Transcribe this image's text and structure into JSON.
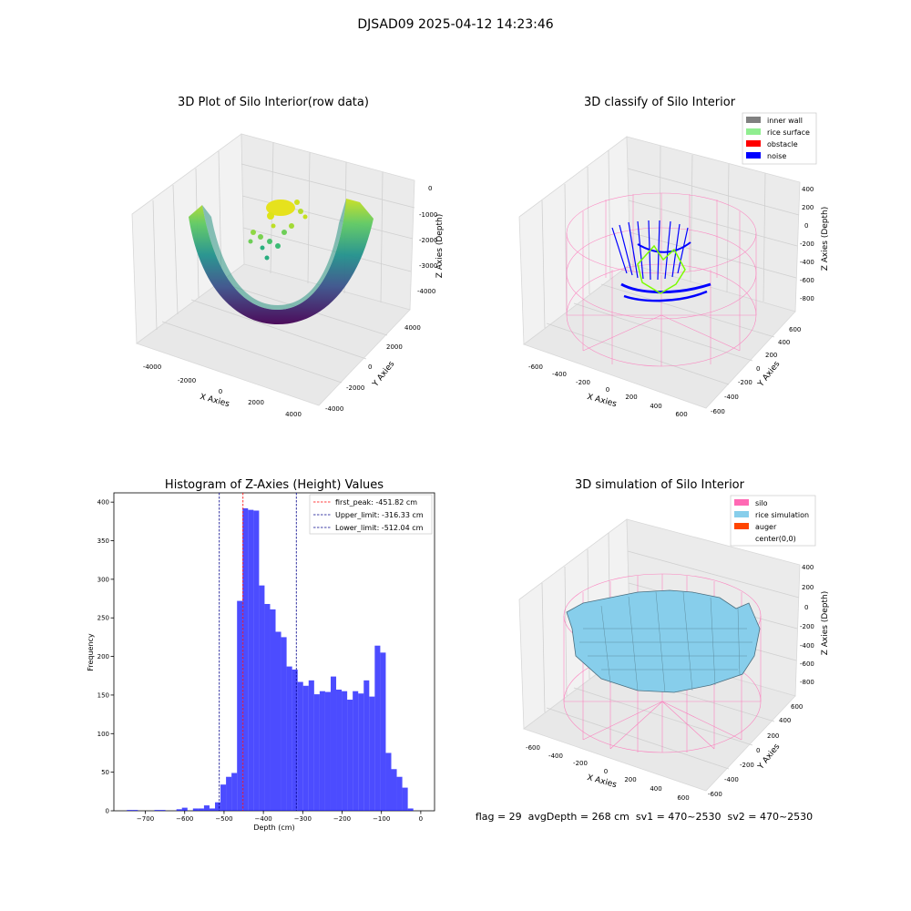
{
  "figure": {
    "suptitle": "DJSAD09 2025-04-12 14:23:46",
    "footer": "flag = 29  avgDepth = 268 cm  sv1 = 470~2530  sv2 = 470~2530"
  },
  "panels": {
    "raw": {
      "title": "3D Plot of Silo Interior(row data)",
      "xlabel": "X Axies",
      "ylabel": "Y Axies",
      "zlabel": "Z Axies (Depth)",
      "xticks": [
        "-4000",
        "-2000",
        "0",
        "2000",
        "4000"
      ],
      "yticks": [
        "-4000",
        "-2000",
        "0",
        "2000",
        "4000"
      ],
      "zticks": [
        "0",
        "-1000",
        "-2000",
        "-3000",
        "-4000"
      ]
    },
    "classify": {
      "title": "3D classify of Silo Interior",
      "xlabel": "X Axies",
      "ylabel": "Y Axies",
      "zlabel": "Z Axies (Depth)",
      "xticks": [
        "-600",
        "-400",
        "-200",
        "0",
        "200",
        "400",
        "600"
      ],
      "yticks": [
        "-600",
        "-400",
        "-200",
        "0",
        "200",
        "400",
        "600"
      ],
      "zticks": [
        "400",
        "200",
        "0",
        "-200",
        "-400",
        "-600",
        "-800"
      ],
      "legend": [
        {
          "label": "inner wall",
          "color": "#808080"
        },
        {
          "label": "rice surface",
          "color": "#90ee90"
        },
        {
          "label": "obstacle",
          "color": "#ff0000"
        },
        {
          "label": "noise",
          "color": "#0000ff"
        }
      ]
    },
    "simulation": {
      "title": "3D simulation of Silo Interior",
      "xlabel": "X Axies",
      "ylabel": "Y Axies",
      "zlabel": "Z Axies (Depth)",
      "xticks": [
        "-600",
        "-400",
        "-200",
        "0",
        "200",
        "400",
        "600"
      ],
      "yticks": [
        "-600",
        "-400",
        "-200",
        "0",
        "200",
        "400",
        "600"
      ],
      "zticks": [
        "400",
        "200",
        "0",
        "-200",
        "-400",
        "-600",
        "-800"
      ],
      "legend": [
        {
          "label": "silo",
          "color": "#ff69b4"
        },
        {
          "label": "rice simulation",
          "color": "#87ceeb"
        },
        {
          "label": "auger",
          "color": "#ff4500"
        },
        {
          "label": "center(0,0)",
          "color": ""
        }
      ]
    }
  },
  "chart_data": {
    "type": "bar",
    "title": "Histogram of Z-Axies (Height) Values",
    "xlabel": "Depth (cm)",
    "ylabel": "Frequency",
    "xlim": [
      -780,
      35
    ],
    "ylim": [
      0,
      412
    ],
    "xticks": [
      -700,
      -600,
      -500,
      -400,
      -300,
      -200,
      -100,
      0
    ],
    "yticks": [
      0,
      50,
      100,
      150,
      200,
      250,
      300,
      350,
      400
    ],
    "bar_color": "#0000ff",
    "bin_width": 14.0,
    "bins": [
      {
        "x0": -747,
        "value": 1
      },
      {
        "x0": -733,
        "value": 1
      },
      {
        "x0": -677,
        "value": 1
      },
      {
        "x0": -663,
        "value": 1
      },
      {
        "x0": -621,
        "value": 2
      },
      {
        "x0": -607,
        "value": 4
      },
      {
        "x0": -579,
        "value": 3
      },
      {
        "x0": -565,
        "value": 3
      },
      {
        "x0": -551,
        "value": 7
      },
      {
        "x0": -537,
        "value": 3
      },
      {
        "x0": -523,
        "value": 11
      },
      {
        "x0": -509,
        "value": 34
      },
      {
        "x0": -495,
        "value": 44
      },
      {
        "x0": -481,
        "value": 49
      },
      {
        "x0": -467,
        "value": 272
      },
      {
        "x0": -453,
        "value": 392
      },
      {
        "x0": -439,
        "value": 390
      },
      {
        "x0": -425,
        "value": 389
      },
      {
        "x0": -411,
        "value": 292
      },
      {
        "x0": -397,
        "value": 268
      },
      {
        "x0": -383,
        "value": 261
      },
      {
        "x0": -369,
        "value": 232
      },
      {
        "x0": -355,
        "value": 225
      },
      {
        "x0": -341,
        "value": 187
      },
      {
        "x0": -327,
        "value": 183
      },
      {
        "x0": -313,
        "value": 167
      },
      {
        "x0": -299,
        "value": 162
      },
      {
        "x0": -285,
        "value": 169
      },
      {
        "x0": -271,
        "value": 151
      },
      {
        "x0": -257,
        "value": 155
      },
      {
        "x0": -243,
        "value": 154
      },
      {
        "x0": -229,
        "value": 174
      },
      {
        "x0": -215,
        "value": 157
      },
      {
        "x0": -201,
        "value": 155
      },
      {
        "x0": -187,
        "value": 144
      },
      {
        "x0": -173,
        "value": 155
      },
      {
        "x0": -159,
        "value": 152
      },
      {
        "x0": -145,
        "value": 169
      },
      {
        "x0": -131,
        "value": 148
      },
      {
        "x0": -117,
        "value": 214
      },
      {
        "x0": -103,
        "value": 205
      },
      {
        "x0": -89,
        "value": 75
      },
      {
        "x0": -75,
        "value": 54
      },
      {
        "x0": -61,
        "value": 44
      },
      {
        "x0": -47,
        "value": 30
      },
      {
        "x0": -33,
        "value": 3
      }
    ],
    "vlines": [
      {
        "label": "first_peak: -451.82 cm",
        "x": -451.82,
        "color": "#ff0000"
      },
      {
        "label": "Upper_limit: -316.33 cm",
        "x": -316.33,
        "color": "#00008b"
      },
      {
        "label": "Lower_limit: -512.04 cm",
        "x": -512.04,
        "color": "#00008b"
      }
    ],
    "legend_position": "top-right"
  }
}
